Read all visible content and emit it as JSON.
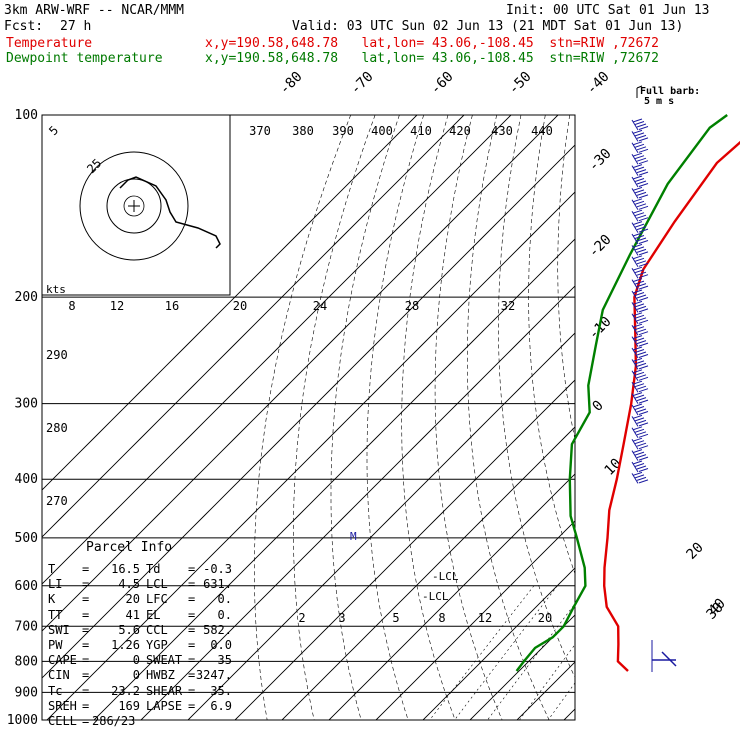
{
  "header": {
    "model": "3km ARW-WRF -- NCAR/MMM",
    "fcst_label": "Fcst:",
    "fcst_value": "27 h",
    "init": "Init: 00 UTC Sat 01 Jun 13",
    "valid": "Valid: 03 UTC Sun 02 Jun 13 (21 MDT Sat 01 Jun 13)",
    "temp_label": "Temperature",
    "dewp_label": "Dewpoint temperature",
    "location": "x,y=190.58,648.78   lat,lon= 43.06,-108.45  stn=RIW ,72672"
  },
  "colors": {
    "temperature": "#e00000",
    "dewpoint": "#008000",
    "grid": "#000000",
    "wind": "#1a1aa0"
  },
  "chart_data": {
    "type": "line",
    "title": "",
    "y_axis": {
      "label": "",
      "scale": "log",
      "ticks": [
        100,
        200,
        300,
        400,
        500,
        600,
        700,
        800,
        900,
        1000
      ]
    },
    "isotherm_labels": [
      "-80",
      "-70",
      "-60",
      "-50",
      "-40",
      "-30",
      "-20",
      "-10",
      "0",
      "10",
      "20",
      "30",
      "40"
    ],
    "theta_labels": [
      "370",
      "380",
      "390",
      "400",
      "410",
      "420",
      "430",
      "440"
    ],
    "mixing_ratio_labels": [
      "2",
      "3",
      "5",
      "8",
      "12",
      "20"
    ],
    "hodo_speed_labels": [
      "8",
      "12",
      "16",
      "20",
      "24",
      "28",
      "32"
    ],
    "hodo_ring_labels": [
      "5",
      "25"
    ],
    "left_scale_labels": [
      "290",
      "280",
      "270"
    ],
    "wind_legend": {
      "line1": "Full barb:",
      "line2": "5 m s"
    },
    "hodo_units": "kts",
    "lcl_labels": [
      "LCL",
      "LCL"
    ],
    "grid": true,
    "series": [
      {
        "name": "Temperature",
        "points": [
          [
            830,
            23.2
          ],
          [
            800,
            19
          ],
          [
            750,
            15.5
          ],
          [
            700,
            11.6
          ],
          [
            650,
            5
          ],
          [
            600,
            0
          ],
          [
            560,
            -3.8
          ],
          [
            500,
            -9.5
          ],
          [
            450,
            -15
          ],
          [
            400,
            -20
          ],
          [
            350,
            -26
          ],
          [
            300,
            -33
          ],
          [
            260,
            -40
          ],
          [
            230,
            -47
          ],
          [
            200,
            -55
          ],
          [
            180,
            -59
          ],
          [
            150,
            -62.5
          ],
          [
            120,
            -66
          ],
          [
            105,
            -65
          ],
          [
            100,
            -63
          ]
        ]
      },
      {
        "name": "Dewpoint temperature",
        "points": [
          [
            830,
            -0.5
          ],
          [
            800,
            -1
          ],
          [
            760,
            -1.5
          ],
          [
            730,
            0
          ],
          [
            700,
            0
          ],
          [
            650,
            -2
          ],
          [
            600,
            -4
          ],
          [
            560,
            -8
          ],
          [
            500,
            -16
          ],
          [
            460,
            -22
          ],
          [
            400,
            -30
          ],
          [
            350,
            -37
          ],
          [
            310,
            -40
          ],
          [
            280,
            -46
          ],
          [
            240,
            -53
          ],
          [
            210,
            -59
          ],
          [
            170,
            -65
          ],
          [
            130,
            -72
          ],
          [
            105,
            -75
          ],
          [
            100,
            -74
          ]
        ]
      }
    ]
  },
  "parcel_info": {
    "title": "Parcel Info",
    "rows": [
      [
        "T",
        "16.5",
        "Td",
        "-0.3"
      ],
      [
        "LI",
        "4.5",
        "LCL",
        "631."
      ],
      [
        "K",
        "20",
        "LFC",
        "0."
      ],
      [
        "TT",
        "41",
        "EL",
        "0."
      ],
      [
        "SWI",
        "5.6",
        "CCL",
        "582."
      ],
      [
        "PW",
        "1.26",
        "YGP",
        "0.0"
      ],
      [
        "CAPE",
        "0",
        "SWEAT",
        "35"
      ],
      [
        "CIN",
        "0",
        "HWBZ",
        "3247."
      ],
      [
        "Tc",
        "23.2",
        "SHEAR",
        "35."
      ],
      [
        "SREH",
        "169",
        "LAPSE",
        "6.9"
      ],
      [
        "CELL",
        "286/23",
        "",
        ""
      ]
    ]
  }
}
